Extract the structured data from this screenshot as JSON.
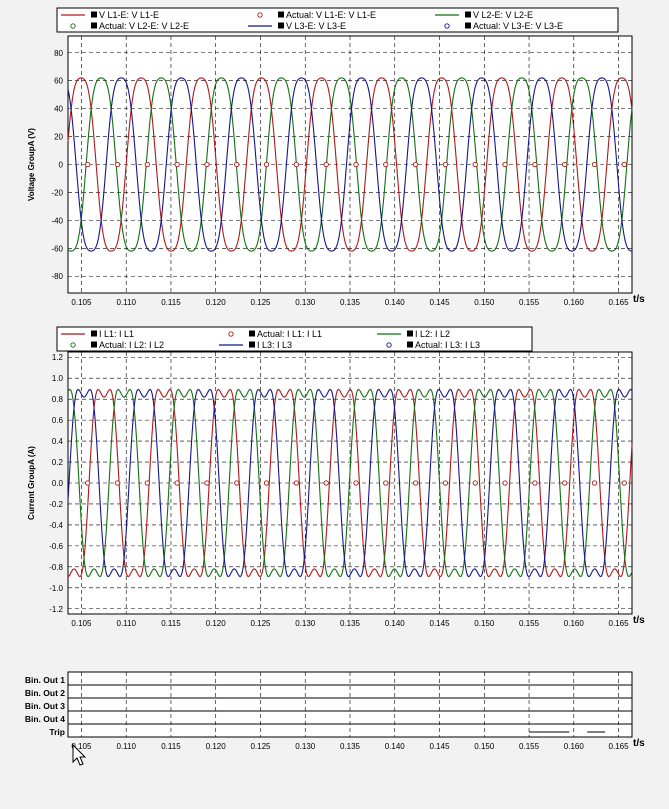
{
  "colors": {
    "background": "#f2f2f2",
    "plot": "#ffffff",
    "grid": "#000000",
    "red": "#b01818",
    "green": "#127012",
    "blue": "#16168c",
    "marker_red": "#b01818",
    "marker_green": "#127012",
    "marker_blue": "#16168c"
  },
  "chart_data": [
    {
      "type": "line",
      "ylabel": "Voltage GroupA (V)",
      "xunit": "t/s",
      "xlim": [
        0.1035,
        0.1665
      ],
      "ylim": [
        -92,
        92
      ],
      "xticks": [
        "0.105",
        "0.110",
        "0.115",
        "0.120",
        "0.125",
        "0.130",
        "0.135",
        "0.140",
        "0.145",
        "0.150",
        "0.155",
        "0.160",
        "0.165"
      ],
      "yticks": [
        "80",
        "60",
        "40",
        "20",
        "0",
        "-20",
        "-40",
        "-60",
        "-80"
      ],
      "grid": true,
      "legend_position": "top",
      "legend": [
        {
          "label": "V L1-E: V L1-E",
          "style": "line",
          "color": "red"
        },
        {
          "label": "Actual: V L1-E: V L1-E",
          "style": "marker",
          "color": "marker_red"
        },
        {
          "label": "V L2-E: V L2-E",
          "style": "line",
          "color": "green"
        },
        {
          "label": "Actual: V L2-E: V L2-E",
          "style": "marker",
          "color": "marker_green"
        },
        {
          "label": "V L3-E: V L3-E",
          "style": "line",
          "color": "blue"
        },
        {
          "label": "Actual: V L3-E: V L3-E",
          "style": "marker",
          "color": "marker_blue"
        }
      ],
      "series": [
        {
          "color": "red",
          "amplitude": 62,
          "third_harmonic": 0.085,
          "phase_deg": 0
        },
        {
          "color": "green",
          "amplitude": 62,
          "third_harmonic": 0.085,
          "phase_deg": 120
        },
        {
          "color": "blue",
          "amplitude": 62,
          "third_harmonic": 0.085,
          "phase_deg": 240
        }
      ],
      "frequency_hz": 149,
      "wave_t0": 0.11,
      "actual_markers": {
        "y": 0,
        "x_start": 0.1057,
        "x_step": 0.00333
      }
    },
    {
      "type": "line",
      "ylabel": "Current GroupA (A)",
      "xunit": "t/s",
      "xlim": [
        0.1035,
        0.1665
      ],
      "ylim": [
        -1.25,
        1.25
      ],
      "xticks": [
        "0.105",
        "0.110",
        "0.115",
        "0.120",
        "0.125",
        "0.130",
        "0.135",
        "0.140",
        "0.145",
        "0.150",
        "0.155",
        "0.160",
        "0.165"
      ],
      "yticks": [
        "1.2",
        "1.0",
        "0.8",
        "0.6",
        "0.4",
        "0.2",
        "0.0",
        "-0.2",
        "-0.4",
        "-0.6",
        "-0.8",
        "-1.0",
        "-1.2"
      ],
      "grid": true,
      "legend_position": "top",
      "legend": [
        {
          "label": "I L1: I L1",
          "style": "line",
          "color": "red"
        },
        {
          "label": "Actual: I L1: I L1",
          "style": "marker",
          "color": "marker_red"
        },
        {
          "label": "I L2: I L2",
          "style": "line",
          "color": "green"
        },
        {
          "label": "Actual: I L2: I L2",
          "style": "marker",
          "color": "marker_green"
        },
        {
          "label": "I L3: I L3",
          "style": "line",
          "color": "blue"
        },
        {
          "label": "Actual: I L3: I L3",
          "style": "marker",
          "color": "marker_blue"
        }
      ],
      "series": [
        {
          "color": "red",
          "amplitude": 0.82,
          "third_harmonic": 0.2,
          "phase_deg": 0
        },
        {
          "color": "green",
          "amplitude": 0.82,
          "third_harmonic": 0.2,
          "phase_deg": 120
        },
        {
          "color": "blue",
          "amplitude": 0.82,
          "third_harmonic": 0.2,
          "phase_deg": 240
        }
      ],
      "frequency_hz": 149,
      "wave_t0": 0.10585,
      "actual_markers": {
        "y": 0,
        "x_start": 0.1057,
        "x_step": 0.00333
      }
    },
    {
      "type": "line",
      "xunit": "t/s",
      "xlim": [
        0.1035,
        0.1665
      ],
      "xticks": [
        "0.105",
        "0.110",
        "0.115",
        "0.120",
        "0.125",
        "0.130",
        "0.135",
        "0.140",
        "0.145",
        "0.150",
        "0.155",
        "0.160",
        "0.165"
      ],
      "channels": [
        "Bin. Out 1",
        "Bin. Out 2",
        "Bin. Out 3",
        "Bin. Out 4",
        "Trip"
      ],
      "trip_segments": [
        [
          0.155,
          0.1595
        ],
        [
          0.1615,
          0.1635
        ]
      ],
      "grid": true
    }
  ]
}
